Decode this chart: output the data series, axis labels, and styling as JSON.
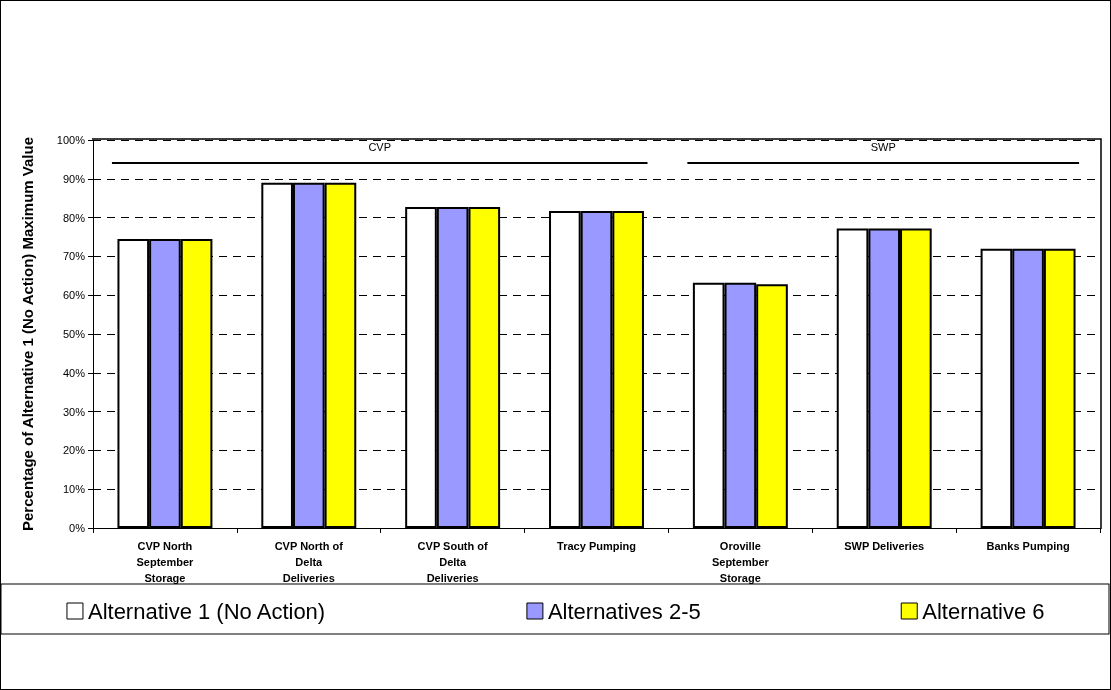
{
  "chart_data": {
    "type": "bar",
    "ylabel": "Percentage of Alternative 1 (No Action) Maximum Value",
    "categories": [
      "CVP North September Storage",
      "CVP North of Delta Deliveries",
      "CVP South of Delta Deliveries",
      "Tracy Pumping",
      "Oroville September Storage",
      "SWP Deliveries",
      "Banks Pumping"
    ],
    "series": [
      {
        "name": "Alternative 1 (No Action)",
        "color": "#ffffff",
        "values": [
          74.5,
          89,
          82.7,
          81.7,
          63.2,
          77.2,
          72
        ]
      },
      {
        "name": "Alternatives 2-5",
        "color": "#9999ff",
        "values": [
          74.5,
          89,
          82.7,
          81.7,
          63.2,
          77.2,
          72
        ]
      },
      {
        "name": "Alternative 6",
        "color": "#ffff00",
        "values": [
          74.5,
          89,
          82.7,
          81.7,
          62.8,
          77.2,
          72
        ]
      }
    ],
    "ylim": [
      0,
      100
    ],
    "yticks": [
      {
        "value": 0,
        "label": "0%"
      },
      {
        "value": 10,
        "label": "10%"
      },
      {
        "value": 20,
        "label": "20%"
      },
      {
        "value": 30,
        "label": "30%"
      },
      {
        "value": 40,
        "label": "40%"
      },
      {
        "value": 50,
        "label": "50%"
      },
      {
        "value": 60,
        "label": "60%"
      },
      {
        "value": 70,
        "label": "70%"
      },
      {
        "value": 80,
        "label": "80%"
      },
      {
        "value": 90,
        "label": "90%"
      },
      {
        "value": 100,
        "label": "100%"
      }
    ],
    "grid": "y",
    "legend": "bottom",
    "annotations": [
      "CVP",
      "SWP"
    ]
  }
}
